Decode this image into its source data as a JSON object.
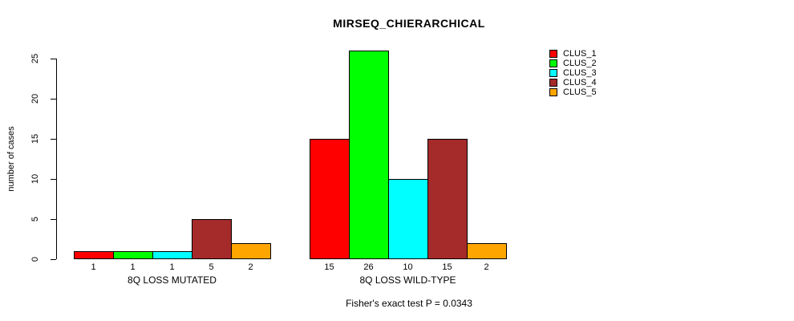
{
  "chart_data": {
    "type": "bar",
    "title": "MIRSEQ_CHIERARCHICAL",
    "ylabel": "number of cases",
    "xlabel": "",
    "ylim": [
      0,
      26
    ],
    "yticks": [
      0,
      5,
      10,
      15,
      20,
      25
    ],
    "categories": [
      "8Q LOSS MUTATED",
      "8Q LOSS WILD-TYPE"
    ],
    "series": [
      {
        "name": "CLUS_1",
        "color": "#FF0000",
        "values": [
          1,
          15
        ]
      },
      {
        "name": "CLUS_2",
        "color": "#00FF00",
        "values": [
          1,
          26
        ]
      },
      {
        "name": "CLUS_3",
        "color": "#00FFFF",
        "values": [
          1,
          10
        ]
      },
      {
        "name": "CLUS_4",
        "color": "#A52A2A",
        "values": [
          5,
          15
        ]
      },
      {
        "name": "CLUS_5",
        "color": "#FFA500",
        "values": [
          2,
          2
        ]
      }
    ],
    "bar_value_labels": {
      "8Q LOSS MUTATED": [
        1,
        1,
        1,
        5,
        2
      ],
      "8Q LOSS WILD-TYPE": [
        15,
        26,
        10,
        15,
        2
      ]
    },
    "grid": false,
    "legend_position": "right",
    "footnote": "Fisher's exact test P = 0.0343"
  }
}
